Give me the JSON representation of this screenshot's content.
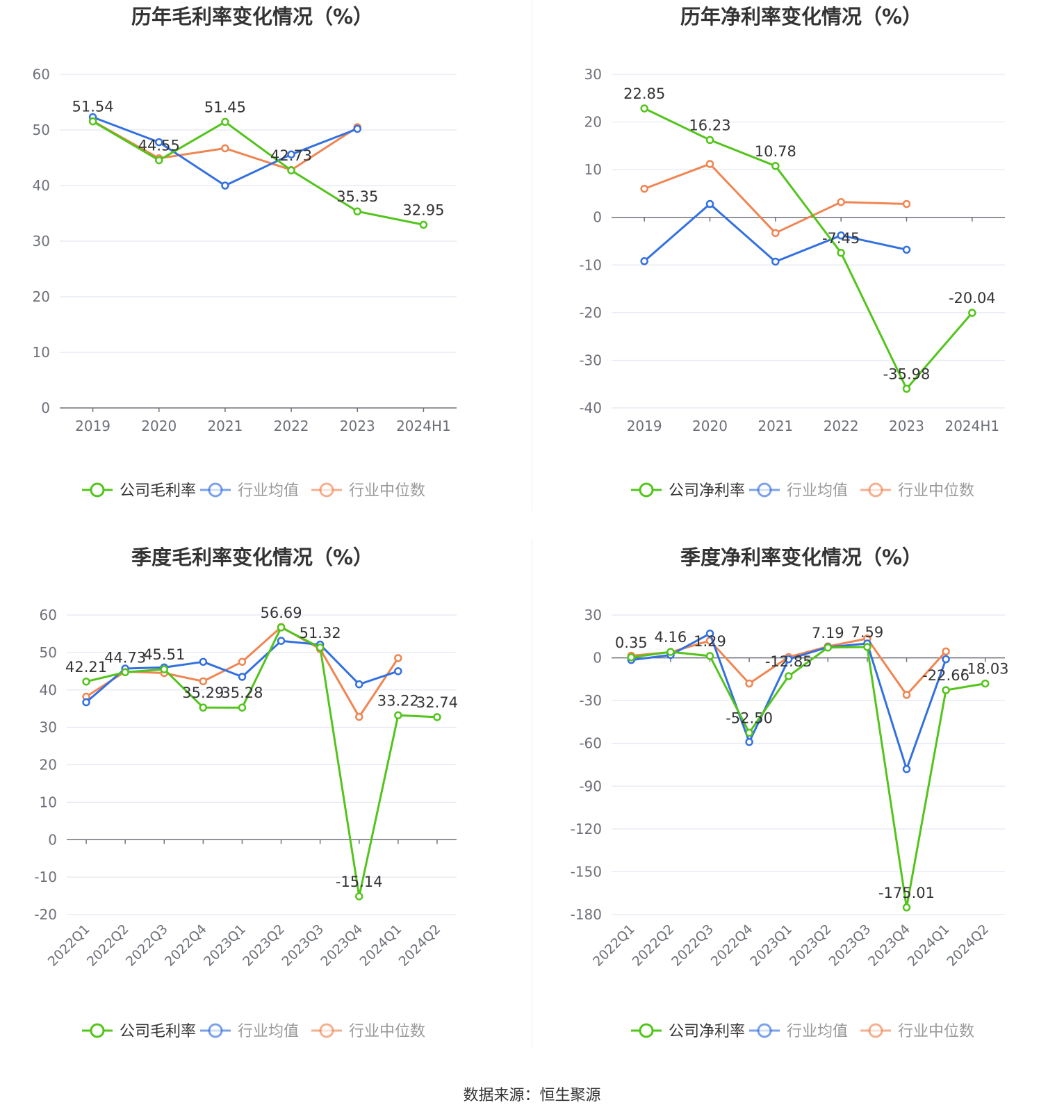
{
  "source": "数据来源：恒生聚源",
  "colors": {
    "company": "#52c41a",
    "avg": "#3370e0",
    "median": "#f08552",
    "grid": "#e3e7f2",
    "axis": "#6e7079",
    "tick": "#6e7079",
    "label": "#333333"
  },
  "legend": {
    "avg_label": "行业均值",
    "median_label": "行业中位数"
  },
  "chart_data": [
    {
      "type": "line",
      "title": "历年毛利率变化情况（%）",
      "company_label": "公司毛利率",
      "categories": [
        "2019",
        "2020",
        "2021",
        "2022",
        "2023",
        "2024H1"
      ],
      "ylim": [
        0,
        60
      ],
      "yticks": [
        0,
        10,
        20,
        30,
        40,
        50,
        60
      ],
      "rotate_x": false,
      "series": [
        {
          "name": "公司毛利率",
          "values": [
            51.54,
            44.55,
            51.45,
            42.73,
            35.35,
            32.95
          ],
          "labels": [
            "51.54",
            "44.55",
            "51.45",
            "42.73",
            "35.35",
            "32.95"
          ]
        },
        {
          "name": "行业均值",
          "values": [
            52.3,
            47.8,
            40.0,
            45.6,
            50.2,
            null
          ]
        },
        {
          "name": "行业中位数",
          "values": [
            51.6,
            44.9,
            46.7,
            42.8,
            50.5,
            null
          ]
        }
      ]
    },
    {
      "type": "line",
      "title": "历年净利率变化情况（%）",
      "company_label": "公司净利率",
      "categories": [
        "2019",
        "2020",
        "2021",
        "2022",
        "2023",
        "2024H1"
      ],
      "ylim": [
        -40,
        30
      ],
      "yticks": [
        -40,
        -30,
        -20,
        -10,
        0,
        10,
        20,
        30
      ],
      "rotate_x": false,
      "series": [
        {
          "name": "公司净利率",
          "values": [
            22.85,
            16.23,
            10.78,
            -7.45,
            -35.98,
            -20.04
          ],
          "labels": [
            "22.85",
            "16.23",
            "10.78",
            "-7.45",
            "-35.98",
            "-20.04"
          ]
        },
        {
          "name": "行业均值",
          "values": [
            -9.2,
            2.8,
            -9.3,
            -3.8,
            -6.8,
            null
          ]
        },
        {
          "name": "行业中位数",
          "values": [
            6.0,
            11.2,
            -3.3,
            3.2,
            2.8,
            null
          ]
        }
      ]
    },
    {
      "type": "line",
      "title": "季度毛利率变化情况（%）",
      "company_label": "公司毛利率",
      "categories": [
        "2022Q1",
        "2022Q2",
        "2022Q3",
        "2022Q4",
        "2023Q1",
        "2023Q2",
        "2023Q3",
        "2023Q4",
        "2024Q1",
        "2024Q2"
      ],
      "ylim": [
        -20,
        60
      ],
      "yticks": [
        -20,
        -10,
        0,
        10,
        20,
        30,
        40,
        50,
        60
      ],
      "rotate_x": true,
      "series": [
        {
          "name": "公司毛利率",
          "values": [
            42.21,
            44.73,
            45.51,
            35.29,
            35.28,
            56.69,
            51.32,
            -15.14,
            33.22,
            32.74
          ],
          "labels": [
            "42.21",
            "44.73",
            "45.51",
            "35.29",
            "35.28",
            "56.69",
            "51.32",
            "-15.14",
            "33.22",
            "32.74"
          ]
        },
        {
          "name": "行业均值",
          "values": [
            36.7,
            45.7,
            46.0,
            47.5,
            43.5,
            53.1,
            52.1,
            41.5,
            45.0,
            null
          ]
        },
        {
          "name": "行业中位数",
          "values": [
            38.2,
            44.9,
            44.5,
            42.3,
            47.5,
            56.8,
            50.9,
            32.8,
            48.5,
            null
          ]
        }
      ]
    },
    {
      "type": "line",
      "title": "季度净利率变化情况（%）",
      "company_label": "公司净利率",
      "categories": [
        "2022Q1",
        "2022Q2",
        "2022Q3",
        "2022Q4",
        "2023Q1",
        "2023Q2",
        "2023Q3",
        "2023Q4",
        "2024Q1",
        "2024Q2"
      ],
      "ylim": [
        -180,
        30
      ],
      "yticks": [
        -180,
        -150,
        -120,
        -90,
        -60,
        -30,
        0,
        30
      ],
      "rotate_x": true,
      "series": [
        {
          "name": "公司净利率",
          "values": [
            0.35,
            4.16,
            1.29,
            -52.5,
            -12.85,
            7.19,
            7.59,
            -175.01,
            -22.66,
            -18.03
          ],
          "labels": [
            "0.35",
            "4.16",
            "1.29",
            "-52.50",
            "-12.85",
            "7.19",
            "7.59",
            "-175.01",
            "-22.66",
            "-18.03"
          ]
        },
        {
          "name": "行业均值",
          "values": [
            -1.5,
            2.0,
            17.0,
            -59.0,
            -1.0,
            7.5,
            10.0,
            -78.0,
            -1.0,
            null
          ]
        },
        {
          "name": "行业中位数",
          "values": [
            1.5,
            4.0,
            12.0,
            -18.0,
            0.5,
            8.0,
            13.5,
            -26.0,
            4.5,
            null
          ]
        }
      ]
    }
  ]
}
